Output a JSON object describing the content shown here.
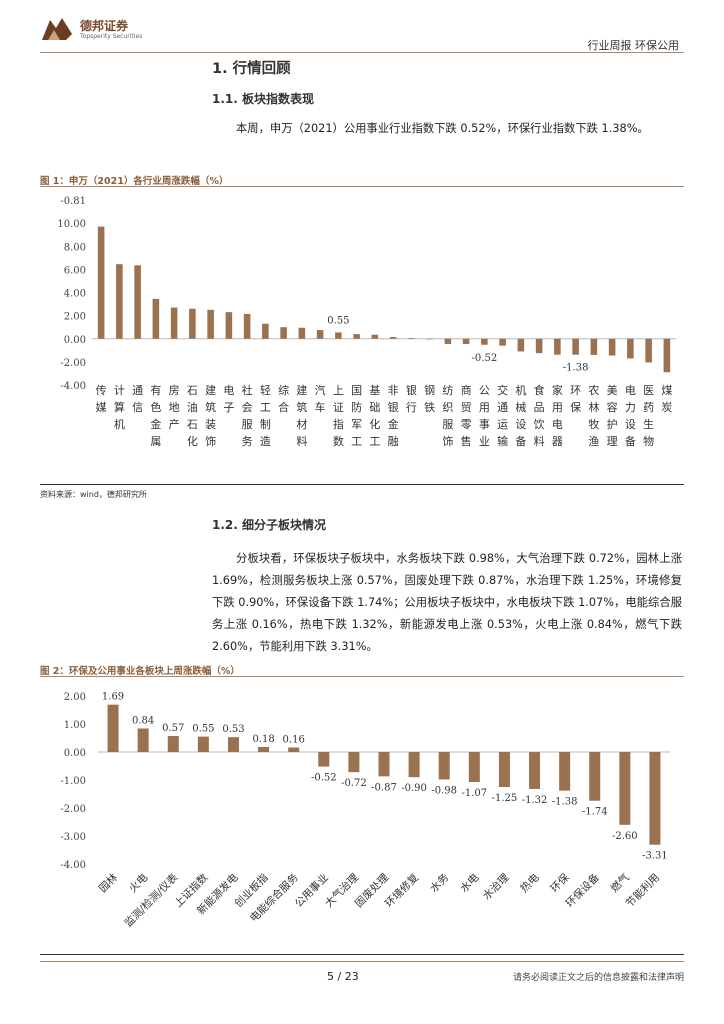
{
  "header": {
    "brand_name": "德邦证券",
    "brand_sub": "Topsperity Securities",
    "report_type": "行业周报  环保公用"
  },
  "section1": {
    "title": "1. 行情回顾"
  },
  "section1_1": {
    "title": "1.1. 板块指数表现",
    "paragraph": "本周，申万（2021）公用事业行业指数下跌 0.52%，环保行业指数下跌 1.38%。"
  },
  "figure1": {
    "title": "图 1：申万（2021）各行业周涨跌幅（%）"
  },
  "source": "资料来源：wind，德邦研究所",
  "section1_2": {
    "title": "1.2. 细分子板块情况",
    "paragraph": "分板块看，环保板块子板块中，水务板块下跌 0.98%，大气治理下跌 0.72%，园林上涨 1.69%，检测服务板块上涨 0.57%，固废处理下跌 0.87%，水治理下跌 1.25%，环境修复下跌 0.90%，环保设备下跌 1.74%；公用板块子板块中，水电板块下跌 1.07%，电能综合服务上涨 0.16%，热电下跌 1.32%，新能源发电上涨 0.53%，火电上涨 0.84%，燃气下跌 2.60%，节能利用下跌 3.31%。"
  },
  "figure2": {
    "title": "图 2：环保及公用事业各板块上周涨跌幅（%）"
  },
  "footer": {
    "page": "5 / 23",
    "disclaimer": "请务必阅读正文之后的信息披露和法律声明"
  },
  "chart_data": [
    {
      "type": "bar",
      "categories": [
        "传媒",
        "计算机",
        "通信",
        "有色金属",
        "房地产",
        "石油石化",
        "建筑装饰",
        "电子",
        "社会服务",
        "轻工制造",
        "综合",
        "建筑材料",
        "汽车",
        "上证指数",
        "国防军工",
        "基础化工",
        "非银金融",
        "银行",
        "钢铁",
        "纺织服饰",
        "商贸零售",
        "公用事业",
        "交通运输",
        "机械设备",
        "食品饮料",
        "家用电器",
        "环保",
        "农林牧渔",
        "美容护理",
        "电力设备",
        "医药生物",
        "煤炭"
      ],
      "values": [
        9.7,
        6.45,
        6.35,
        3.45,
        2.7,
        2.6,
        2.5,
        2.3,
        2.15,
        1.3,
        1.0,
        0.95,
        0.75,
        0.55,
        0.4,
        0.35,
        0.15,
        0.05,
        0.0,
        -0.45,
        -0.45,
        -0.52,
        -0.6,
        -1.1,
        -1.25,
        -1.38,
        -1.38,
        -1.4,
        -1.45,
        -1.7,
        -2.05,
        -2.9
      ],
      "value_labels": {
        "13": "0.55",
        "21": "-0.52",
        "26": "-1.38"
      },
      "y_ticks": [
        "-4.00",
        "-2.00",
        "0.00",
        "2.00",
        "4.00",
        "6.00",
        "8.00",
        "10.00"
      ],
      "y_top_label": "-0.81",
      "ylim": [
        -4,
        12
      ],
      "color": "#9b7250"
    },
    {
      "type": "bar",
      "categories": [
        "园林",
        "火电",
        "监测/检测/仪表",
        "上证指数",
        "新能源发电",
        "创业板指",
        "电能综合服务",
        "公用事业",
        "大气治理",
        "固废处理",
        "环境修复",
        "水务",
        "水电",
        "水治理",
        "热电",
        "环保",
        "环保设备",
        "燃气",
        "节能利用"
      ],
      "values": [
        1.69,
        0.84,
        0.57,
        0.55,
        0.53,
        0.18,
        0.16,
        -0.52,
        -0.72,
        -0.87,
        -0.9,
        -0.98,
        -1.07,
        -1.25,
        -1.32,
        -1.38,
        -1.74,
        -2.6,
        -3.31
      ],
      "value_labels": [
        "1.69",
        "0.84",
        "0.57",
        "0.55",
        "0.53",
        "0.18",
        "0.16",
        "-0.52",
        "-0.72",
        "-0.87",
        "-0.90",
        "-0.98",
        "-1.07",
        "-1.25",
        "-1.32",
        "-1.38",
        "-1.74",
        "-2.60",
        "-3.31"
      ],
      "y_ticks": [
        "-4.00",
        "-3.00",
        "-2.00",
        "-1.00",
        "0.00",
        "1.00",
        "2.00"
      ],
      "ylim": [
        -4,
        2
      ],
      "color": "#9b7250"
    }
  ]
}
